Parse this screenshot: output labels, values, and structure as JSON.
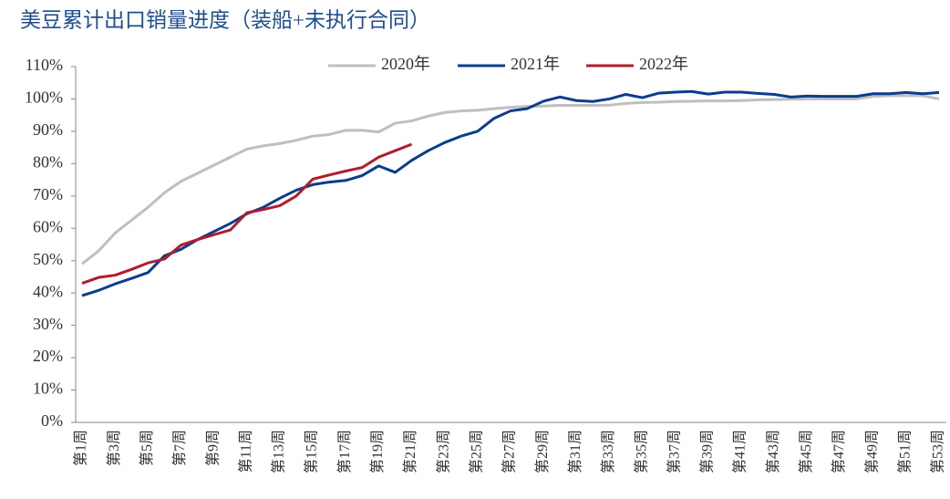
{
  "chart_data": {
    "type": "line",
    "title": "美豆累计出口销量进度（装船+未执行合同）",
    "categories": [
      "第1周",
      null,
      "第3周",
      null,
      "第5周",
      null,
      "第7周",
      null,
      "第9周",
      null,
      "第11周",
      null,
      "第13周",
      null,
      "第15周",
      null,
      "第17周",
      null,
      "第19周",
      null,
      "第21周",
      null,
      "第23周",
      null,
      "第25周",
      null,
      "第27周",
      null,
      "第29周",
      null,
      "第31周",
      null,
      "第33周",
      null,
      "第35周",
      null,
      "第37周",
      null,
      "第39周",
      null,
      "第41周",
      null,
      "第43周",
      null,
      "第45周",
      null,
      "第47周",
      null,
      "第49周",
      null,
      "第51周",
      null,
      "第53周"
    ],
    "series": [
      {
        "name": "2020年",
        "color": "#bfbfbf",
        "values": [
          49,
          53,
          58.5,
          62.5,
          66.5,
          71,
          74.5,
          77,
          79.5,
          82,
          84.5,
          85.5,
          86.2,
          87.2,
          88.5,
          89,
          90.3,
          90.3,
          89.8,
          92.5,
          93.2,
          94.7,
          95.8,
          96.3,
          96.5,
          97,
          97.4,
          97.7,
          97.8,
          98,
          98,
          98,
          98.1,
          98.6,
          98.9,
          99,
          99.2,
          99.3,
          99.4,
          99.4,
          99.5,
          99.7,
          99.8,
          99.9,
          100,
          100,
          100,
          100,
          100.8,
          101,
          101,
          101,
          100
        ]
      },
      {
        "name": "2021年",
        "color": "#0b3d8c",
        "values": [
          39.2,
          40.8,
          42.8,
          44.5,
          46.3,
          51.5,
          53.5,
          56.5,
          59,
          61.5,
          64.5,
          66.5,
          69.3,
          71.8,
          73.5,
          74.3,
          74.8,
          76.3,
          79.3,
          77.3,
          81,
          84,
          86.5,
          88.5,
          90,
          94,
          96.3,
          97,
          99.3,
          100.6,
          99.5,
          99.2,
          100,
          101.4,
          100.4,
          101.8,
          102.1,
          102.3,
          101.5,
          102.1,
          102.1,
          101.7,
          101.4,
          100.6,
          100.9,
          100.8,
          100.8,
          100.8,
          101.6,
          101.6,
          102,
          101.6,
          102
        ]
      },
      {
        "name": "2022年",
        "color": "#b01c2e",
        "values": [
          43,
          44.8,
          45.5,
          47.3,
          49.3,
          50.5,
          54.8,
          56.5,
          58,
          59.5,
          64.8,
          65.8,
          67,
          70,
          75.2,
          76.5,
          77.7,
          78.8,
          82,
          84,
          86,
          null,
          null,
          null,
          null,
          null,
          null,
          null,
          null,
          null,
          null,
          null,
          null,
          null,
          null,
          null,
          null,
          null,
          null,
          null,
          null,
          null,
          null,
          null,
          null,
          null,
          null,
          null,
          null,
          null,
          null,
          null,
          null
        ]
      }
    ],
    "ylim": [
      0,
      110
    ],
    "yticks": [
      {
        "value": 0,
        "label": "0%"
      },
      {
        "value": 10,
        "label": "10%"
      },
      {
        "value": 20,
        "label": "20%"
      },
      {
        "value": 30,
        "label": "30%"
      },
      {
        "value": 40,
        "label": "40%"
      },
      {
        "value": 50,
        "label": "50%"
      },
      {
        "value": 60,
        "label": "60%"
      },
      {
        "value": 70,
        "label": "70%"
      },
      {
        "value": 80,
        "label": "80%"
      },
      {
        "value": 90,
        "label": "90%"
      },
      {
        "value": 100,
        "label": "100%"
      },
      {
        "value": 110,
        "label": "110%"
      }
    ],
    "legend": "top"
  }
}
